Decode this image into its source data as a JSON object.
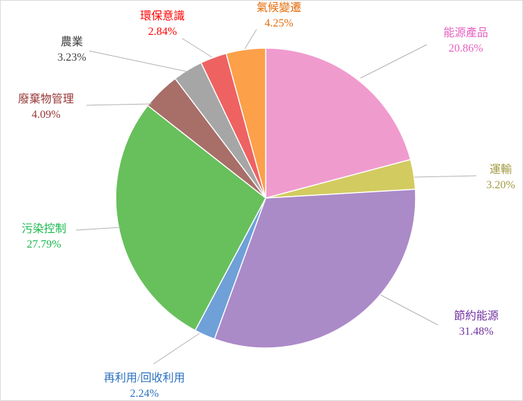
{
  "chart_data": {
    "type": "pie",
    "title": "",
    "slices": [
      {
        "label": "能源產品",
        "value": 20.86,
        "percent_label": "20.86%",
        "color": "#f09bce",
        "text_color": "#e65fc0"
      },
      {
        "label": "運輸",
        "value": 3.2,
        "percent_label": "3.20%",
        "color": "#d2cb60",
        "text_color": "#a09a40"
      },
      {
        "label": "節約能源",
        "value": 31.48,
        "percent_label": "31.48%",
        "color": "#ab8ac8",
        "text_color": "#7030a0"
      },
      {
        "label": "再利用/回收利用",
        "value": 2.24,
        "percent_label": "2.24%",
        "color": "#6fa0d8",
        "text_color": "#2a70c0"
      },
      {
        "label": "污染控制",
        "value": 27.79,
        "percent_label": "27.79%",
        "color": "#67c05b",
        "text_color": "#16b84c"
      },
      {
        "label": "廢棄物管理",
        "value": 4.09,
        "percent_label": "4.09%",
        "color": "#a86e68",
        "text_color": "#953735"
      },
      {
        "label": "農業",
        "value": 3.23,
        "percent_label": "3.23%",
        "color": "#a6a6a6",
        "text_color": "#404040"
      },
      {
        "label": "環保意識",
        "value": 2.84,
        "percent_label": "2.84%",
        "color": "#ee6262",
        "text_color": "#ff0000"
      },
      {
        "label": "氣候變遷",
        "value": 4.25,
        "percent_label": "4.25%",
        "color": "#fca04a",
        "text_color": "#e46c0a"
      }
    ]
  }
}
